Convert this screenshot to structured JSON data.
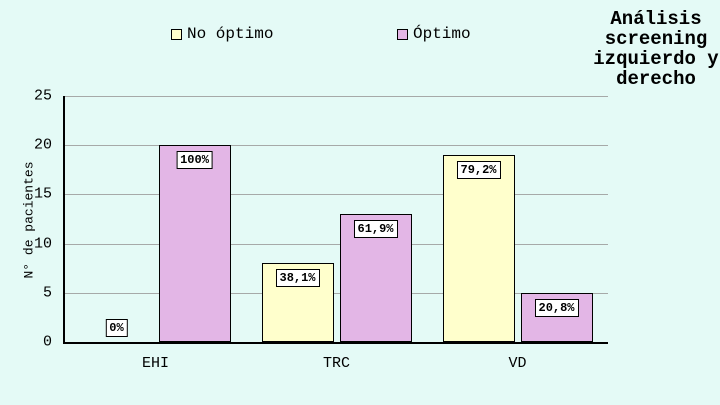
{
  "title": {
    "text": "Análisis screening izquierdo y derecho",
    "lines": [
      "Análisis",
      "screening",
      "izquierdo y",
      "derecho"
    ]
  },
  "y_axis": {
    "label": "N° de pacientes",
    "ticks": [
      0,
      5,
      10,
      15,
      20,
      25
    ],
    "min": 0,
    "max": 25
  },
  "chart_data": {
    "type": "bar",
    "title": "Análisis screening izquierdo y derecho",
    "categories": [
      "EHI",
      "TRC",
      "VD"
    ],
    "series": [
      {
        "name": "No óptimo",
        "color": "#FFFFCC",
        "values": [
          0,
          8,
          19
        ],
        "data_labels": [
          "0%",
          "38,1%",
          "79,2%"
        ]
      },
      {
        "name": "Óptimo",
        "color": "#E3B6E6",
        "values": [
          20,
          13,
          5
        ],
        "data_labels": [
          "100%",
          "61,9%",
          "20,8%"
        ]
      }
    ],
    "xlabel": "",
    "ylabel": "N° de pacientes",
    "ylim": [
      0,
      25
    ],
    "grid": true,
    "legend_position": "top",
    "colors": {
      "background": "#E4FAF6",
      "gridline": "#A6A9A8",
      "axis": "#000000",
      "label_box_background": "#FFFFFF",
      "bar_border": "#000000"
    }
  }
}
